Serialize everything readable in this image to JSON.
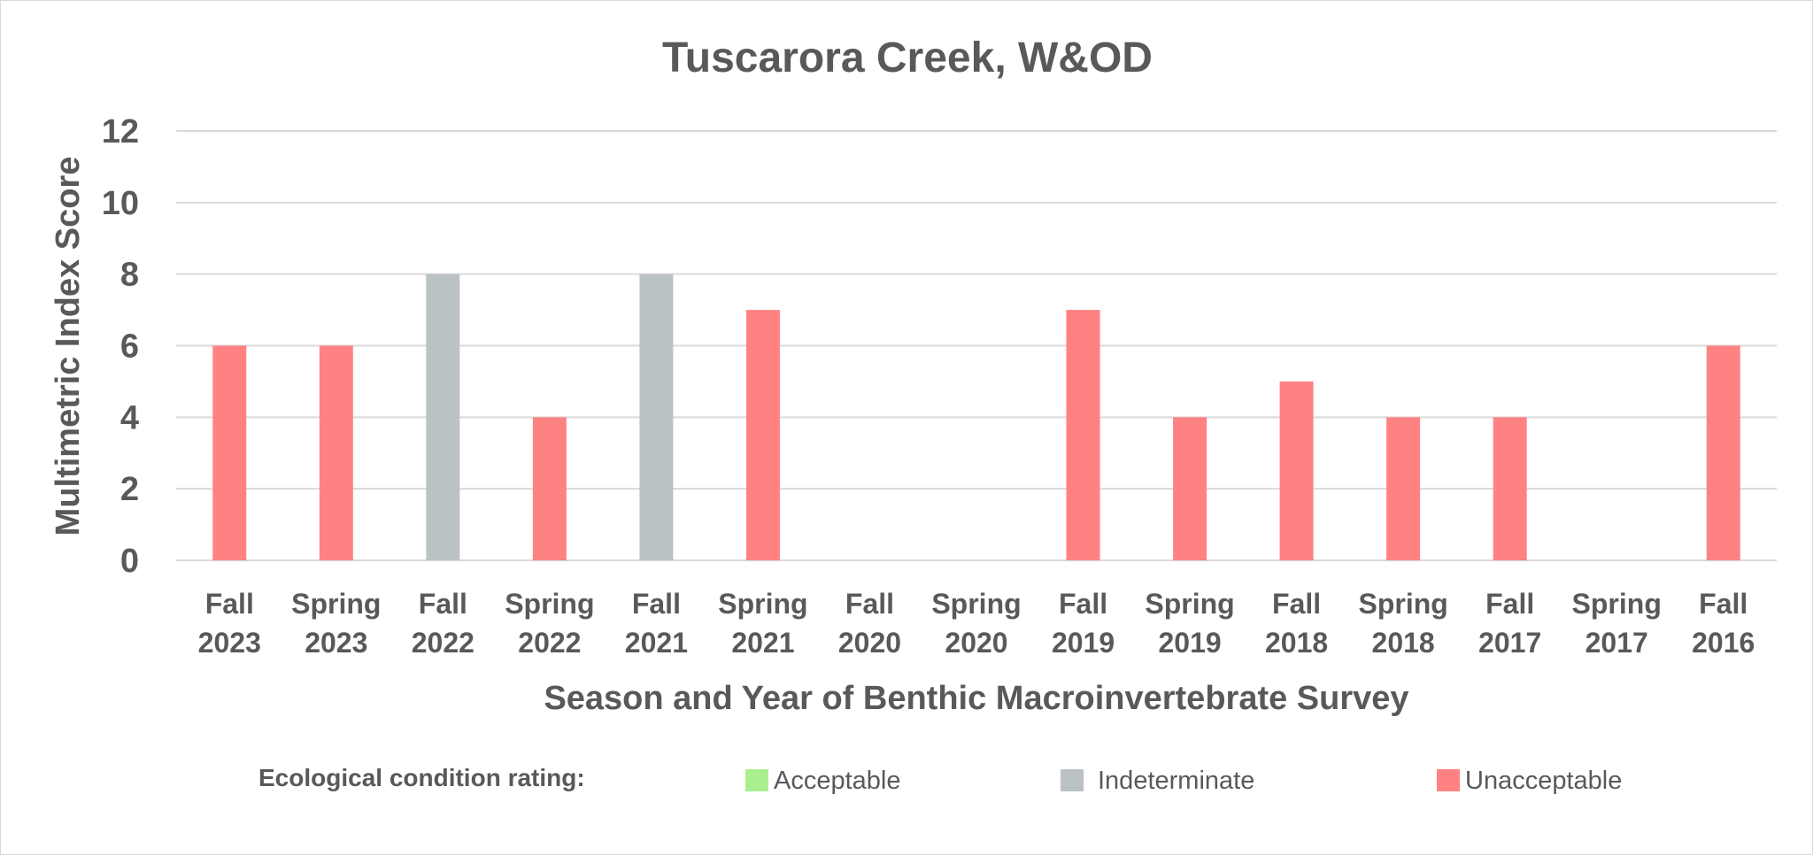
{
  "chart_data": {
    "type": "bar",
    "title": "Tuscarora Creek, W&OD",
    "xlabel": "Season and Year of Benthic Macroinvertebrate Survey",
    "ylabel": "Multimetric Index Score",
    "ylim": [
      0,
      12
    ],
    "yticks": [
      0,
      2,
      4,
      6,
      8,
      10,
      12
    ],
    "grid": true,
    "categories": [
      "Fall 2023",
      "Spring 2023",
      "Fall 2022",
      "Spring 2022",
      "Fall 2021",
      "Spring 2021",
      "Fall 2020",
      "Spring 2020",
      "Fall 2019",
      "Spring 2019",
      "Fall 2018",
      "Spring 2018",
      "Fall 2017",
      "Spring 2017",
      "Fall 2016"
    ],
    "values": [
      6,
      6,
      8,
      4,
      8,
      7,
      null,
      null,
      7,
      4,
      5,
      4,
      4,
      null,
      6
    ],
    "ratings": [
      "Unacceptable",
      "Unacceptable",
      "Indeterminate",
      "Unacceptable",
      "Indeterminate",
      "Unacceptable",
      null,
      null,
      "Unacceptable",
      "Unacceptable",
      "Unacceptable",
      "Unacceptable",
      "Unacceptable",
      null,
      "Unacceptable"
    ],
    "legend": {
      "title": "Ecological condition rating:",
      "position": "bottom",
      "items": [
        {
          "label": "Acceptable",
          "color": "#a9ef8f"
        },
        {
          "label": "Indeterminate",
          "color": "#bbc2c4"
        },
        {
          "label": "Unacceptable",
          "color": "#ff8282"
        }
      ]
    },
    "colors": {
      "text": "#595959",
      "grid": "#d9d9d9"
    }
  }
}
